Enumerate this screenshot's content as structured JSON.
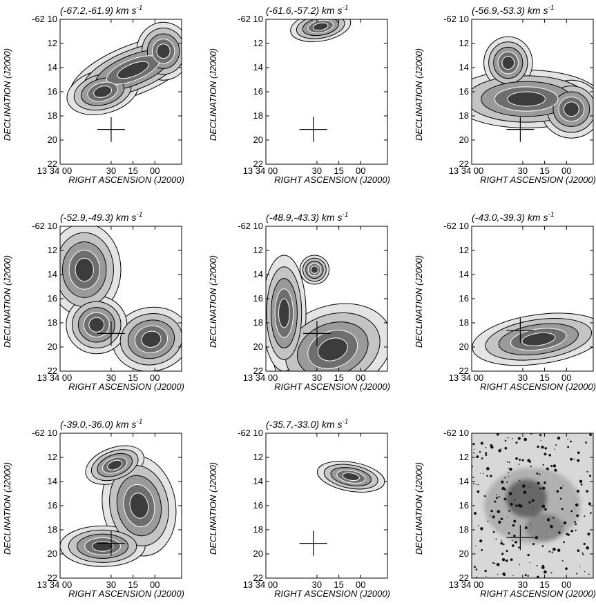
{
  "figure": {
    "panels": [
      {
        "title": "(-67.2,-61.9) km s",
        "type": "contour"
      },
      {
        "title": "(-61.6,-57.2) km s",
        "type": "contour"
      },
      {
        "title": "(-56.9,-53.3) km s",
        "type": "contour"
      },
      {
        "title": "(-52.9,-49.3) km s",
        "type": "contour"
      },
      {
        "title": "(-48.9,-43.3) km s",
        "type": "contour"
      },
      {
        "title": "(-43.0,-39.3) km s",
        "type": "contour"
      },
      {
        "title": "(-39.0,-36.0) km s",
        "type": "contour"
      },
      {
        "title": "(-35.7,-33.0) km s",
        "type": "contour"
      },
      {
        "title": "",
        "type": "optical"
      }
    ],
    "unit_exponent": "-1",
    "y_axis": {
      "label": "DECLINATION (J2000)",
      "ticks": [
        "-62 10",
        "12",
        "14",
        "16",
        "18",
        "20",
        "22"
      ]
    },
    "x_axis": {
      "label": "RIGHT ASCENSION (J2000)",
      "ticks": [
        "13 34 00",
        "30",
        "15",
        "00"
      ]
    },
    "colors": {
      "ink": "#000000",
      "contour_inner": "#ffffff",
      "paper": "#ffffff"
    }
  }
}
